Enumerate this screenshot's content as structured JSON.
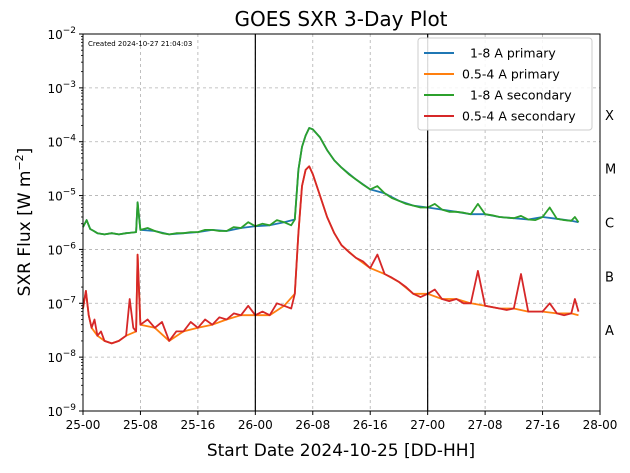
{
  "chart_data": {
    "type": "line",
    "title": "GOES SXR 3-Day Plot",
    "created_note": "Created 2024-10-27 21:04:03",
    "xlabel": "Start Date 2024-10-25 [DD-HH]",
    "ylabel_main": "SXR Flux [W m",
    "ylabel_sup": "−2",
    "ylabel_close": "]",
    "yscale": "log",
    "xlim_hours": [
      0,
      72
    ],
    "ylim": [
      1e-09,
      0.01
    ],
    "grid": true,
    "legend_position": "top-right",
    "x_ticks": [
      {
        "hour": 0,
        "label": "25-00"
      },
      {
        "hour": 8,
        "label": "25-08"
      },
      {
        "hour": 16,
        "label": "25-16"
      },
      {
        "hour": 24,
        "label": "26-00"
      },
      {
        "hour": 32,
        "label": "26-08"
      },
      {
        "hour": 40,
        "label": "26-16"
      },
      {
        "hour": 48,
        "label": "27-00"
      },
      {
        "hour": 56,
        "label": "27-08"
      },
      {
        "hour": 64,
        "label": "27-16"
      },
      {
        "hour": 72,
        "label": "28-00"
      }
    ],
    "y_ticks": [
      {
        "exp": -9,
        "base": "10",
        "sup": "−9"
      },
      {
        "exp": -8,
        "base": "10",
        "sup": "−8"
      },
      {
        "exp": -7,
        "base": "10",
        "sup": "−7"
      },
      {
        "exp": -6,
        "base": "10",
        "sup": "−6"
      },
      {
        "exp": -5,
        "base": "10",
        "sup": "−5"
      },
      {
        "exp": -4,
        "base": "10",
        "sup": "−4"
      },
      {
        "exp": -3,
        "base": "10",
        "sup": "−3"
      },
      {
        "exp": -2,
        "base": "10",
        "sup": "−2"
      }
    ],
    "flare_classes": [
      {
        "label": "A",
        "exp": -7.5
      },
      {
        "label": "B",
        "exp": -6.5
      },
      {
        "label": "C",
        "exp": -5.5
      },
      {
        "label": "M",
        "exp": -4.5
      },
      {
        "label": "X",
        "exp": -3.5
      }
    ],
    "vertical_lines_hours": [
      24,
      48
    ],
    "series": [
      {
        "name": "  1-8 A primary",
        "color": "#1f77b4",
        "x": [
          0,
          0.5,
          1,
          1.5,
          2,
          3,
          4,
          5,
          6,
          7.4,
          7.6,
          8,
          10,
          12,
          14,
          16,
          18,
          20,
          22,
          24,
          26,
          28,
          29.5,
          30,
          30.5,
          31,
          31.5,
          32,
          33,
          34,
          35,
          36,
          38,
          40,
          42,
          44,
          46,
          48,
          50,
          52,
          54,
          56,
          58,
          60,
          62,
          64,
          66,
          68,
          69
        ],
        "y": [
          2.6e-06,
          3.5e-06,
          2.4e-06,
          2.2e-06,
          2e-06,
          1.9e-06,
          2e-06,
          1.9e-06,
          2e-06,
          2.1e-06,
          7.5e-06,
          2.3e-06,
          2.2e-06,
          1.9e-06,
          2e-06,
          2.1e-06,
          2.3e-06,
          2.2e-06,
          2.5e-06,
          2.7e-06,
          2.8e-06,
          3.2e-06,
          3.6e-06,
          3e-05,
          8e-05,
          0.00013,
          0.00018,
          0.00017,
          0.00012,
          7e-05,
          4.5e-05,
          3.3e-05,
          2e-05,
          1.3e-05,
          1.1e-05,
          8e-06,
          6.5e-06,
          6e-06,
          5.5e-06,
          5e-06,
          4.5e-06,
          4.5e-06,
          4e-06,
          3.8e-06,
          3.6e-06,
          4e-06,
          3.7e-06,
          3.4e-06,
          3.2e-06
        ]
      },
      {
        "name": "0.5-4 A primary",
        "color": "#ff7f0e",
        "x": [
          0,
          0.4,
          0.8,
          1.2,
          2,
          3,
          4,
          5,
          6,
          7.4,
          7.6,
          8,
          10,
          12,
          14,
          16,
          18,
          20,
          22,
          24,
          26,
          28,
          29.5,
          30,
          30.5,
          31,
          31.5,
          32,
          33,
          34,
          35,
          36,
          38,
          40,
          42,
          44,
          46,
          48,
          50,
          52,
          54,
          56,
          58,
          60,
          62,
          64,
          66,
          68,
          69
        ],
        "y": [
          8e-08,
          1.7e-07,
          6e-08,
          3.5e-08,
          2.5e-08,
          2e-08,
          1.8e-08,
          2e-08,
          2.5e-08,
          3e-08,
          8e-07,
          4e-08,
          3.5e-08,
          2e-08,
          3e-08,
          3.5e-08,
          4e-08,
          5e-08,
          6e-08,
          6e-08,
          6e-08,
          9e-08,
          1.5e-07,
          2e-06,
          1.5e-05,
          3e-05,
          3.5e-05,
          2.5e-05,
          1e-05,
          4e-06,
          2e-06,
          1.2e-06,
          7e-07,
          4.5e-07,
          3.5e-07,
          2.5e-07,
          1.5e-07,
          1.5e-07,
          1.2e-07,
          1.2e-07,
          1e-07,
          9e-08,
          8e-08,
          8e-08,
          7e-08,
          7e-08,
          6.5e-08,
          6.5e-08,
          6e-08
        ]
      },
      {
        "name": "  1-8 A secondary",
        "color": "#2ca02c",
        "x": [
          0,
          0.5,
          1,
          1.5,
          2,
          3,
          4,
          5,
          6,
          7.4,
          7.6,
          8,
          9,
          10,
          11,
          12,
          13,
          14,
          15,
          16,
          17,
          18,
          19,
          20,
          21,
          22,
          23,
          24,
          25,
          26,
          27,
          28,
          29,
          29.5,
          30,
          30.5,
          31,
          31.5,
          32,
          33,
          34,
          35,
          36,
          37,
          38,
          39,
          40,
          41,
          42,
          43,
          44,
          45,
          46,
          47,
          48,
          49,
          50,
          51,
          52,
          53,
          54,
          55,
          56,
          57,
          58,
          59,
          60,
          61,
          62,
          63,
          64,
          65,
          66,
          67,
          68,
          68.5,
          69
        ],
        "y": [
          2.6e-06,
          3.5e-06,
          2.4e-06,
          2.2e-06,
          2e-06,
          1.9e-06,
          2e-06,
          1.9e-06,
          2e-06,
          2.1e-06,
          7.5e-06,
          2.3e-06,
          2.5e-06,
          2.2e-06,
          2e-06,
          1.9e-06,
          2e-06,
          2e-06,
          2.1e-06,
          2.1e-06,
          2.3e-06,
          2.3e-06,
          2.2e-06,
          2.2e-06,
          2.6e-06,
          2.5e-06,
          3.2e-06,
          2.7e-06,
          3e-06,
          2.8e-06,
          3.5e-06,
          3.2e-06,
          2.8e-06,
          3.6e-06,
          3e-05,
          8e-05,
          0.00013,
          0.00018,
          0.00017,
          0.00012,
          7e-05,
          4.5e-05,
          3.3e-05,
          2.5e-05,
          2e-05,
          1.6e-05,
          1.3e-05,
          1.5e-05,
          1.1e-05,
          9e-06,
          8e-06,
          7e-06,
          6.5e-06,
          6e-06,
          6e-06,
          7e-06,
          5.5e-06,
          5e-06,
          5e-06,
          4.8e-06,
          4.5e-06,
          7e-06,
          4.5e-06,
          4.3e-06,
          4e-06,
          3.9e-06,
          3.8e-06,
          4.2e-06,
          3.6e-06,
          3.5e-06,
          4e-06,
          6e-06,
          3.7e-06,
          3.5e-06,
          3.4e-06,
          4e-06,
          3.2e-06
        ]
      },
      {
        "name": "0.5-4 A secondary",
        "color": "#d62728",
        "x": [
          0,
          0.4,
          0.8,
          1.2,
          1.6,
          2,
          2.5,
          3,
          4,
          5,
          6,
          6.5,
          7,
          7.4,
          7.6,
          8,
          9,
          10,
          11,
          12,
          13,
          14,
          15,
          16,
          17,
          18,
          19,
          20,
          21,
          22,
          23,
          24,
          25,
          26,
          27,
          28,
          29,
          29.5,
          30,
          30.5,
          31,
          31.5,
          32,
          33,
          34,
          35,
          36,
          37,
          38,
          39,
          40,
          41,
          42,
          43,
          44,
          45,
          46,
          47,
          48,
          49,
          50,
          51,
          52,
          53,
          54,
          55,
          56,
          57,
          58,
          59,
          60,
          61,
          62,
          63,
          64,
          65,
          66,
          67,
          68,
          68.5,
          69
        ],
        "y": [
          8e-08,
          1.7e-07,
          6e-08,
          3.5e-08,
          5e-08,
          2.5e-08,
          3e-08,
          2e-08,
          1.8e-08,
          2e-08,
          2.5e-08,
          1.2e-07,
          3.5e-08,
          3e-08,
          8e-07,
          4e-08,
          5e-08,
          3.5e-08,
          4.5e-08,
          2e-08,
          3e-08,
          3e-08,
          4.5e-08,
          3.5e-08,
          5e-08,
          4e-08,
          5.5e-08,
          5e-08,
          6.5e-08,
          6e-08,
          9e-08,
          6e-08,
          7e-08,
          6e-08,
          1e-07,
          9e-08,
          8e-08,
          1.5e-07,
          2e-06,
          1.5e-05,
          3e-05,
          3.5e-05,
          2.5e-05,
          1e-05,
          4e-06,
          2e-06,
          1.2e-06,
          9e-07,
          7e-07,
          6e-07,
          4.5e-07,
          8e-07,
          3.5e-07,
          3e-07,
          2.5e-07,
          2e-07,
          1.5e-07,
          1.3e-07,
          1.5e-07,
          1.8e-07,
          1.2e-07,
          1.1e-07,
          1.2e-07,
          1e-07,
          1e-07,
          4e-07,
          9e-08,
          8.5e-08,
          8e-08,
          7.5e-08,
          8e-08,
          3.5e-07,
          7e-08,
          7e-08,
          7e-08,
          1e-07,
          6.5e-08,
          6e-08,
          6.5e-08,
          1.2e-07,
          7e-08
        ]
      }
    ]
  }
}
